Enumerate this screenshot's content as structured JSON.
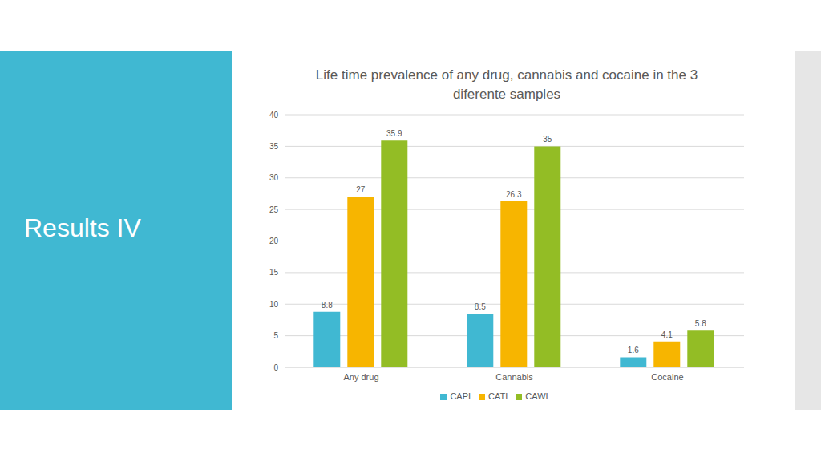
{
  "heading": "Results IV",
  "chart_data": {
    "type": "bar",
    "title": "Life time prevalence of any drug, cannabis and cocaine in the 3 diferente samples",
    "categories": [
      "Any drug",
      "Cannabis",
      "Cocaine"
    ],
    "series": [
      {
        "name": "CAPI",
        "color": "#40b8d2",
        "values": [
          8.8,
          8.5,
          1.6
        ]
      },
      {
        "name": "CATI",
        "color": "#f7b500",
        "values": [
          27,
          26.3,
          4.1
        ]
      },
      {
        "name": "CAWI",
        "color": "#93bd25",
        "values": [
          35.9,
          35,
          5.8
        ]
      }
    ],
    "ylim": [
      0,
      40
    ],
    "yticks": [
      0,
      5,
      10,
      15,
      20,
      25,
      30,
      35,
      40
    ],
    "grid": true,
    "data_labels": true,
    "legend": "bottom"
  }
}
